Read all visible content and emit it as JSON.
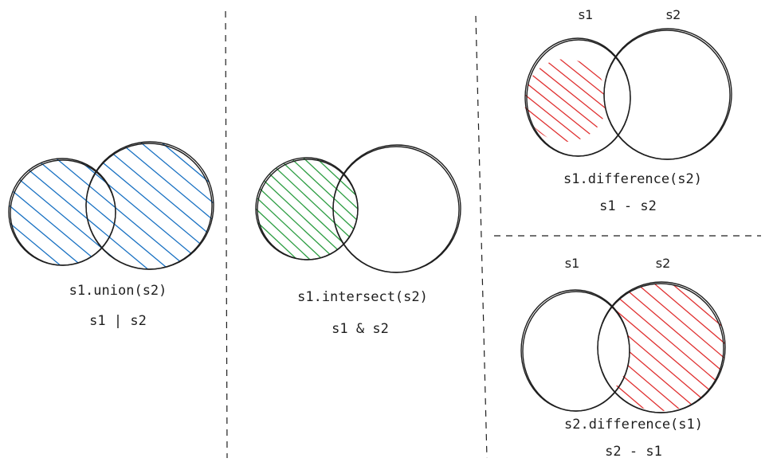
{
  "colors": {
    "union_hatch": "#1971c2",
    "intersect_hatch": "#2f9e44",
    "difference_hatch": "#e03131",
    "outline": "#1e1e1e"
  },
  "panels": {
    "union": {
      "method": "s1.union(s2)",
      "operator": "s1 | s2"
    },
    "intersect": {
      "method": "s1.intersect(s2)",
      "operator": "s1 & s2"
    },
    "difference_s1_s2": {
      "left_set": "s1",
      "right_set": "s2",
      "method": "s1.difference(s2)",
      "operator": "s1 - s2"
    },
    "difference_s2_s1": {
      "left_set": "s1",
      "right_set": "s2",
      "method": "s2.difference(s1)",
      "operator": "s2 - s1"
    }
  }
}
